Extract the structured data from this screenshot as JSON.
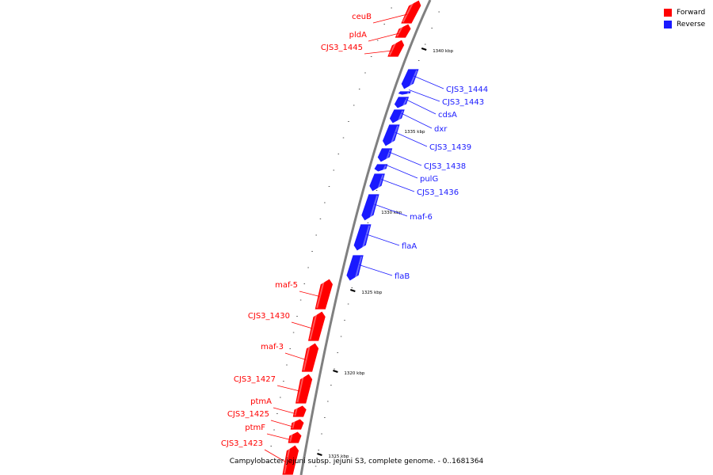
{
  "legend": {
    "forward_label": "Forward",
    "reverse_label": "Reverse",
    "forward_color": "#ff0000",
    "reverse_color": "#1a1aff"
  },
  "caption": "Campylobacter jejuni subsp. jejuni S3, complete genome. - 0..1681364",
  "map": {
    "backbone_color": "#808080",
    "tick_color": "#000000",
    "tick_labels": [
      "1340 kbp",
      "1335 kbp",
      "1330 kbp",
      "1325 kbp",
      "1320 kbp",
      "1315 kbp"
    ],
    "genes": [
      {
        "name": "ceuB",
        "strand": "forward"
      },
      {
        "name": "pldA",
        "strand": "forward"
      },
      {
        "name": "CJS3_1445",
        "strand": "forward"
      },
      {
        "name": "CJS3_1444",
        "strand": "reverse"
      },
      {
        "name": "CJS3_1443",
        "strand": "reverse"
      },
      {
        "name": "cdsA",
        "strand": "reverse"
      },
      {
        "name": "dxr",
        "strand": "reverse"
      },
      {
        "name": "CJS3_1439",
        "strand": "reverse"
      },
      {
        "name": "CJS3_1438",
        "strand": "reverse"
      },
      {
        "name": "pulG",
        "strand": "reverse"
      },
      {
        "name": "CJS3_1436",
        "strand": "reverse"
      },
      {
        "name": "maf-6",
        "strand": "reverse"
      },
      {
        "name": "flaA",
        "strand": "reverse"
      },
      {
        "name": "flaB",
        "strand": "reverse"
      },
      {
        "name": "maf-5",
        "strand": "forward"
      },
      {
        "name": "CJS3_1430",
        "strand": "forward"
      },
      {
        "name": "maf-3",
        "strand": "forward"
      },
      {
        "name": "CJS3_1427",
        "strand": "forward"
      },
      {
        "name": "ptmA",
        "strand": "forward"
      },
      {
        "name": "CJS3_1425",
        "strand": "forward"
      },
      {
        "name": "ptmF",
        "strand": "forward"
      },
      {
        "name": "CJS3_1423",
        "strand": "forward"
      }
    ]
  }
}
